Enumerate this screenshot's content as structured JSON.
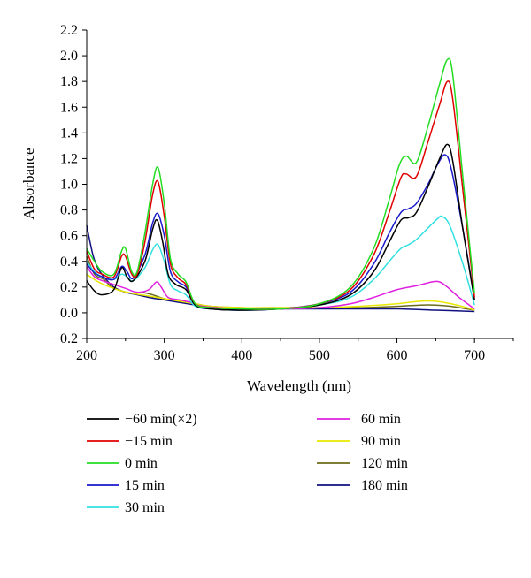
{
  "chart_data": {
    "type": "line",
    "xlabel": "Wavelength (nm)",
    "ylabel": "Absorbance",
    "xlim": [
      200,
      750
    ],
    "ylim": [
      -0.2,
      2.2
    ],
    "xticks": [
      200,
      300,
      400,
      500,
      600,
      700
    ],
    "yticks": [
      -0.2,
      0.0,
      0.2,
      0.4,
      0.6,
      0.8,
      1.0,
      1.2,
      1.4,
      1.6,
      1.8,
      2.0,
      2.2
    ],
    "xtick_labels": [
      "200",
      "300",
      "400",
      "500",
      "600",
      "700"
    ],
    "ytick_labels": [
      "−0.2",
      "0.0",
      "0.2",
      "0.4",
      "0.6",
      "0.8",
      "1.0",
      "1.2",
      "1.4",
      "1.6",
      "1.8",
      "2.0",
      "2.2"
    ],
    "grid": false,
    "legend_position": "bottom",
    "series": [
      {
        "name": "−60 min(×2)",
        "color": "#000000",
        "points": [
          [
            200,
            0.25
          ],
          [
            210,
            0.17
          ],
          [
            220,
            0.14
          ],
          [
            235,
            0.18
          ],
          [
            245,
            0.35
          ],
          [
            252,
            0.28
          ],
          [
            260,
            0.25
          ],
          [
            275,
            0.4
          ],
          [
            285,
            0.65
          ],
          [
            291,
            0.72
          ],
          [
            298,
            0.55
          ],
          [
            305,
            0.3
          ],
          [
            315,
            0.22
          ],
          [
            328,
            0.18
          ],
          [
            340,
            0.06
          ],
          [
            360,
            0.03
          ],
          [
            400,
            0.02
          ],
          [
            450,
            0.03
          ],
          [
            500,
            0.06
          ],
          [
            540,
            0.14
          ],
          [
            570,
            0.32
          ],
          [
            590,
            0.55
          ],
          [
            605,
            0.72
          ],
          [
            615,
            0.74
          ],
          [
            625,
            0.78
          ],
          [
            640,
            0.98
          ],
          [
            655,
            1.2
          ],
          [
            665,
            1.31
          ],
          [
            672,
            1.18
          ],
          [
            685,
            0.65
          ],
          [
            700,
            0.1
          ]
        ]
      },
      {
        "name": "−15 min",
        "color": "#e00000",
        "points": [
          [
            200,
            0.48
          ],
          [
            210,
            0.34
          ],
          [
            220,
            0.3
          ],
          [
            235,
            0.28
          ],
          [
            245,
            0.44
          ],
          [
            250,
            0.44
          ],
          [
            258,
            0.3
          ],
          [
            265,
            0.3
          ],
          [
            275,
            0.55
          ],
          [
            285,
            0.92
          ],
          [
            292,
            1.02
          ],
          [
            300,
            0.75
          ],
          [
            308,
            0.38
          ],
          [
            318,
            0.27
          ],
          [
            328,
            0.22
          ],
          [
            340,
            0.07
          ],
          [
            360,
            0.04
          ],
          [
            400,
            0.03
          ],
          [
            450,
            0.03
          ],
          [
            500,
            0.07
          ],
          [
            540,
            0.18
          ],
          [
            570,
            0.45
          ],
          [
            590,
            0.78
          ],
          [
            605,
            1.05
          ],
          [
            612,
            1.08
          ],
          [
            625,
            1.06
          ],
          [
            640,
            1.33
          ],
          [
            655,
            1.62
          ],
          [
            665,
            1.8
          ],
          [
            672,
            1.66
          ],
          [
            685,
            0.95
          ],
          [
            700,
            0.12
          ]
        ]
      },
      {
        "name": "0 min",
        "color": "#22dd22",
        "points": [
          [
            200,
            0.5
          ],
          [
            210,
            0.4
          ],
          [
            220,
            0.32
          ],
          [
            235,
            0.3
          ],
          [
            245,
            0.48
          ],
          [
            250,
            0.5
          ],
          [
            258,
            0.32
          ],
          [
            265,
            0.32
          ],
          [
            275,
            0.62
          ],
          [
            285,
            1.0
          ],
          [
            292,
            1.13
          ],
          [
            300,
            0.85
          ],
          [
            308,
            0.42
          ],
          [
            318,
            0.3
          ],
          [
            328,
            0.24
          ],
          [
            340,
            0.07
          ],
          [
            360,
            0.04
          ],
          [
            400,
            0.03
          ],
          [
            450,
            0.03
          ],
          [
            500,
            0.07
          ],
          [
            540,
            0.2
          ],
          [
            570,
            0.5
          ],
          [
            590,
            0.88
          ],
          [
            603,
            1.15
          ],
          [
            612,
            1.22
          ],
          [
            625,
            1.17
          ],
          [
            640,
            1.45
          ],
          [
            655,
            1.78
          ],
          [
            665,
            1.97
          ],
          [
            672,
            1.85
          ],
          [
            685,
            1.05
          ],
          [
            700,
            0.15
          ]
        ]
      },
      {
        "name": "15 min",
        "color": "#1a1acc",
        "points": [
          [
            200,
            0.38
          ],
          [
            210,
            0.31
          ],
          [
            220,
            0.28
          ],
          [
            235,
            0.26
          ],
          [
            245,
            0.36
          ],
          [
            252,
            0.32
          ],
          [
            260,
            0.27
          ],
          [
            275,
            0.45
          ],
          [
            285,
            0.7
          ],
          [
            292,
            0.77
          ],
          [
            300,
            0.6
          ],
          [
            308,
            0.32
          ],
          [
            318,
            0.24
          ],
          [
            328,
            0.2
          ],
          [
            340,
            0.06
          ],
          [
            360,
            0.03
          ],
          [
            400,
            0.02
          ],
          [
            450,
            0.03
          ],
          [
            500,
            0.07
          ],
          [
            540,
            0.16
          ],
          [
            570,
            0.38
          ],
          [
            590,
            0.62
          ],
          [
            605,
            0.78
          ],
          [
            615,
            0.81
          ],
          [
            625,
            0.85
          ],
          [
            640,
            1.0
          ],
          [
            652,
            1.15
          ],
          [
            662,
            1.23
          ],
          [
            670,
            1.12
          ],
          [
            685,
            0.65
          ],
          [
            700,
            0.1
          ]
        ]
      },
      {
        "name": "30 min",
        "color": "#33e0e0",
        "points": [
          [
            200,
            0.4
          ],
          [
            210,
            0.32
          ],
          [
            220,
            0.28
          ],
          [
            235,
            0.26
          ],
          [
            245,
            0.3
          ],
          [
            252,
            0.28
          ],
          [
            260,
            0.25
          ],
          [
            275,
            0.35
          ],
          [
            285,
            0.49
          ],
          [
            292,
            0.53
          ],
          [
            300,
            0.4
          ],
          [
            308,
            0.22
          ],
          [
            318,
            0.17
          ],
          [
            328,
            0.14
          ],
          [
            340,
            0.05
          ],
          [
            360,
            0.03
          ],
          [
            400,
            0.02
          ],
          [
            450,
            0.03
          ],
          [
            500,
            0.06
          ],
          [
            540,
            0.12
          ],
          [
            570,
            0.26
          ],
          [
            590,
            0.4
          ],
          [
            605,
            0.5
          ],
          [
            615,
            0.53
          ],
          [
            625,
            0.57
          ],
          [
            640,
            0.66
          ],
          [
            652,
            0.73
          ],
          [
            658,
            0.75
          ],
          [
            668,
            0.68
          ],
          [
            685,
            0.38
          ],
          [
            700,
            0.06
          ]
        ]
      },
      {
        "name": "60 min",
        "color": "#e020e0",
        "points": [
          [
            200,
            0.36
          ],
          [
            210,
            0.28
          ],
          [
            220,
            0.25
          ],
          [
            235,
            0.22
          ],
          [
            250,
            0.19
          ],
          [
            265,
            0.16
          ],
          [
            280,
            0.18
          ],
          [
            290,
            0.24
          ],
          [
            296,
            0.2
          ],
          [
            305,
            0.12
          ],
          [
            320,
            0.1
          ],
          [
            335,
            0.08
          ],
          [
            350,
            0.05
          ],
          [
            400,
            0.03
          ],
          [
            450,
            0.03
          ],
          [
            500,
            0.04
          ],
          [
            540,
            0.07
          ],
          [
            570,
            0.12
          ],
          [
            600,
            0.18
          ],
          [
            625,
            0.21
          ],
          [
            645,
            0.24
          ],
          [
            655,
            0.24
          ],
          [
            665,
            0.2
          ],
          [
            680,
            0.12
          ],
          [
            700,
            0.03
          ]
        ]
      },
      {
        "name": "90 min",
        "color": "#e8e800",
        "points": [
          [
            200,
            0.3
          ],
          [
            215,
            0.24
          ],
          [
            230,
            0.2
          ],
          [
            245,
            0.17
          ],
          [
            260,
            0.15
          ],
          [
            280,
            0.13
          ],
          [
            300,
            0.11
          ],
          [
            320,
            0.09
          ],
          [
            340,
            0.07
          ],
          [
            360,
            0.05
          ],
          [
            400,
            0.04
          ],
          [
            450,
            0.04
          ],
          [
            500,
            0.04
          ],
          [
            550,
            0.05
          ],
          [
            600,
            0.07
          ],
          [
            630,
            0.09
          ],
          [
            650,
            0.09
          ],
          [
            670,
            0.07
          ],
          [
            690,
            0.04
          ],
          [
            700,
            0.02
          ]
        ]
      },
      {
        "name": "120 min",
        "color": "#6b6b1a",
        "points": [
          [
            200,
            0.44
          ],
          [
            210,
            0.3
          ],
          [
            222,
            0.26
          ],
          [
            232,
            0.2
          ],
          [
            245,
            0.17
          ],
          [
            260,
            0.15
          ],
          [
            270,
            0.16
          ],
          [
            285,
            0.14
          ],
          [
            300,
            0.11
          ],
          [
            320,
            0.09
          ],
          [
            340,
            0.07
          ],
          [
            360,
            0.05
          ],
          [
            400,
            0.04
          ],
          [
            450,
            0.04
          ],
          [
            500,
            0.04
          ],
          [
            550,
            0.04
          ],
          [
            600,
            0.05
          ],
          [
            630,
            0.06
          ],
          [
            650,
            0.06
          ],
          [
            670,
            0.05
          ],
          [
            690,
            0.03
          ],
          [
            700,
            0.02
          ]
        ]
      },
      {
        "name": "180 min",
        "color": "#101080",
        "points": [
          [
            200,
            0.68
          ],
          [
            208,
            0.45
          ],
          [
            215,
            0.34
          ],
          [
            225,
            0.26
          ],
          [
            235,
            0.2
          ],
          [
            250,
            0.16
          ],
          [
            265,
            0.14
          ],
          [
            280,
            0.12
          ],
          [
            300,
            0.1
          ],
          [
            320,
            0.08
          ],
          [
            340,
            0.06
          ],
          [
            360,
            0.04
          ],
          [
            400,
            0.03
          ],
          [
            450,
            0.03
          ],
          [
            500,
            0.03
          ],
          [
            550,
            0.03
          ],
          [
            600,
            0.03
          ],
          [
            650,
            0.02
          ],
          [
            700,
            0.01
          ]
        ]
      }
    ]
  }
}
